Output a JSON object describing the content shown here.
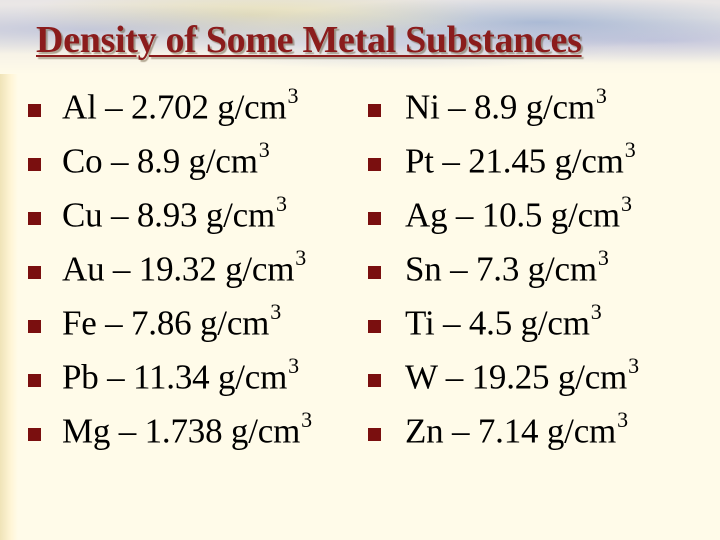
{
  "title": "Density of Some Metal Substances",
  "colors": {
    "title": "#8b1c1c",
    "bullet": "#7a0f0f",
    "text": "#000000",
    "background": "#fffbe9"
  },
  "bullet_icon": "square-bullet",
  "left_column": [
    {
      "text": "Al – 2.702 g/cm",
      "exp": "3"
    },
    {
      "text": "Co – 8.9 g/cm",
      "exp": "3"
    },
    {
      "text": "Cu – 8.93 g/cm",
      "exp": "3"
    },
    {
      "text": "Au – 19.32 g/cm",
      "exp": "3"
    },
    {
      "text": "Fe – 7.86 g/cm",
      "exp": "3"
    },
    {
      "text": "Pb – 11.34 g/cm",
      "exp": "3"
    },
    {
      "text": "Mg – 1.738 g/cm",
      "exp": "3"
    }
  ],
  "right_column": [
    {
      "text": "Ni – 8.9 g/cm",
      "exp": "3"
    },
    {
      "text": "Pt – 21.45 g/cm",
      "exp": "3"
    },
    {
      "text": "Ag – 10.5 g/cm",
      "exp": "3"
    },
    {
      "text": "Sn – 7.3 g/cm",
      "exp": "3"
    },
    {
      "text": "Ti – 4.5 g/cm",
      "exp": "3"
    },
    {
      "text": "W – 19.25 g/cm",
      "exp": "3"
    },
    {
      "text": "Zn – 7.14 g/cm",
      "exp": "3"
    }
  ]
}
